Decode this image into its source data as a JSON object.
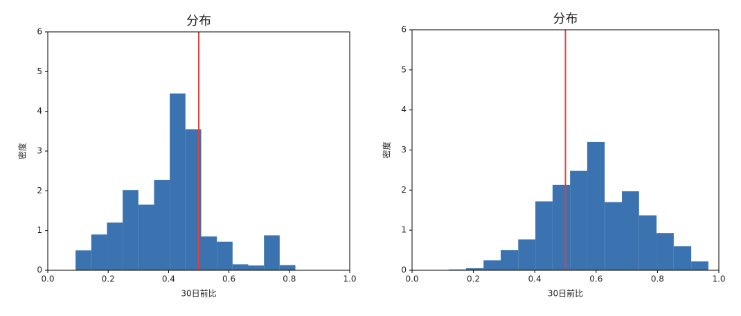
{
  "chart_data": [
    {
      "type": "histogram",
      "title": "分布",
      "xlabel": "30日前比",
      "ylabel": "密度",
      "color": "#3a73b0",
      "bins": [
        0.092,
        0.144,
        0.196,
        0.248,
        0.3,
        0.352,
        0.404,
        0.456,
        0.508,
        0.56,
        0.612,
        0.664,
        0.716,
        0.768,
        0.82
      ],
      "values": [
        0.5,
        0.9,
        1.2,
        2.02,
        1.65,
        2.27,
        4.45,
        3.55,
        0.85,
        0.72,
        0.15,
        0.12,
        0.88,
        0.13
      ],
      "xlim": [
        0,
        1
      ],
      "xticks": [
        {
          "value": 0,
          "label": "0.0"
        },
        0.2,
        0.4,
        0.6,
        0.8,
        {
          "value": 1,
          "label": "1.0"
        }
      ],
      "ylim": [
        0,
        6
      ],
      "yticks": [
        0,
        1,
        2,
        3,
        4,
        5,
        6
      ],
      "vline": 0.5,
      "vline_color": "#e0403a"
    },
    {
      "type": "histogram",
      "title": "分布",
      "xlabel": "30日前比",
      "ylabel": "密度",
      "color": "#3a73b0",
      "bins": [
        0.12,
        0.176,
        0.233,
        0.289,
        0.346,
        0.402,
        0.458,
        0.515,
        0.571,
        0.628,
        0.684,
        0.74,
        0.797,
        0.853,
        0.91,
        0.966
      ],
      "values": [
        0.02,
        0.05,
        0.25,
        0.5,
        0.77,
        1.72,
        2.13,
        2.48,
        3.2,
        1.7,
        1.97,
        1.37,
        0.93,
        0.6,
        0.22
      ],
      "xlim": [
        0,
        1
      ],
      "xticks": [
        {
          "value": 0,
          "label": "0.0"
        },
        0.2,
        0.4,
        0.6,
        0.8,
        {
          "value": 1,
          "label": "1.0"
        }
      ],
      "ylim": [
        0,
        6
      ],
      "yticks": [
        0,
        1,
        2,
        3,
        4,
        5,
        6
      ],
      "vline": 0.5,
      "vline_color": "#e0403a"
    }
  ]
}
